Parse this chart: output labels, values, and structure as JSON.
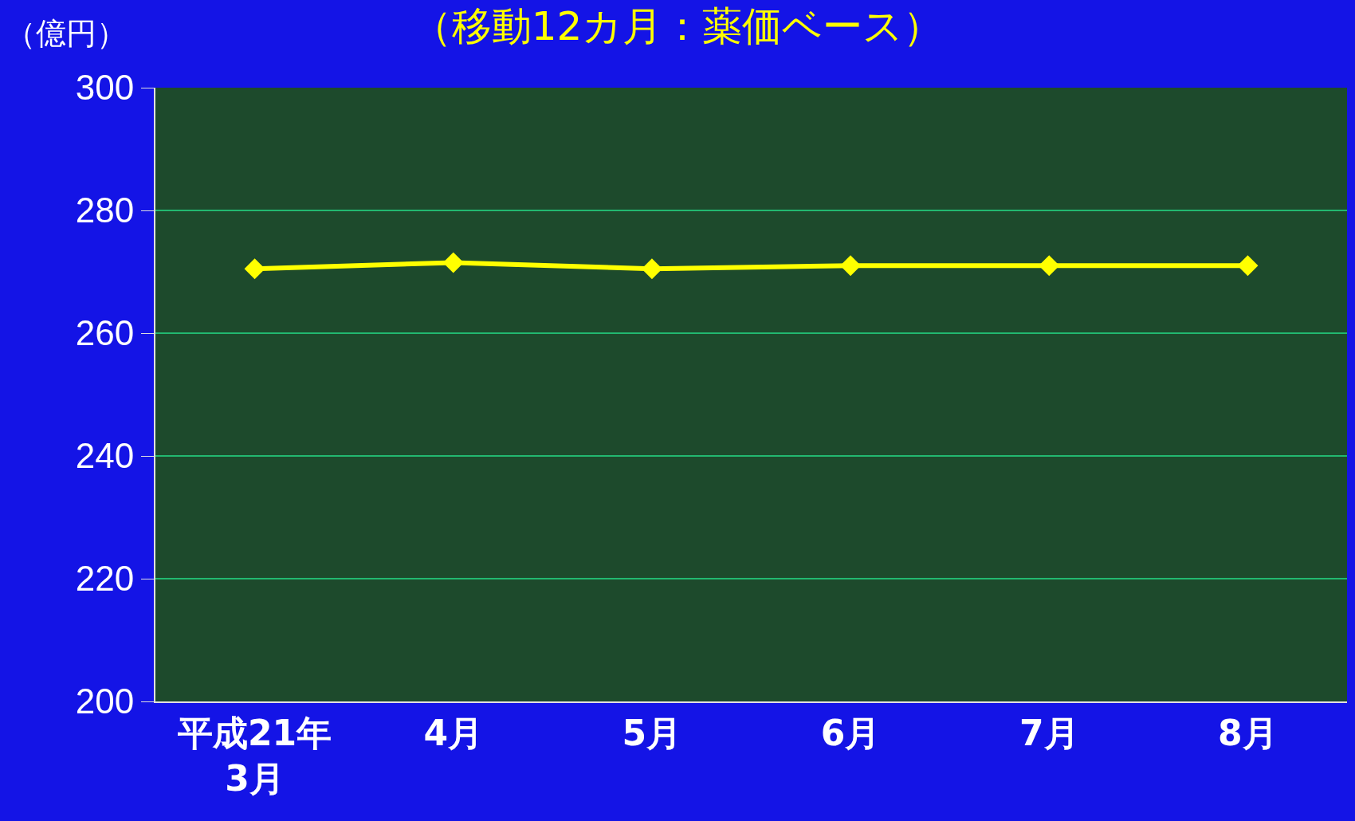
{
  "chart_data": {
    "type": "line",
    "title": "（移動12カ月：薬価ベース）",
    "ylabel": "（億円）",
    "categories": [
      "平成21年\n3月",
      "4月",
      "5月",
      "6月",
      "7月",
      "8月"
    ],
    "values": [
      270.5,
      271.5,
      270.5,
      271,
      271,
      271
    ],
    "color": "#ffff00",
    "ylim": [
      200,
      300
    ],
    "yticks": [
      200,
      220,
      240,
      260,
      280,
      300
    ],
    "grid": "y",
    "marker": "diamond",
    "line_style": "solid"
  }
}
